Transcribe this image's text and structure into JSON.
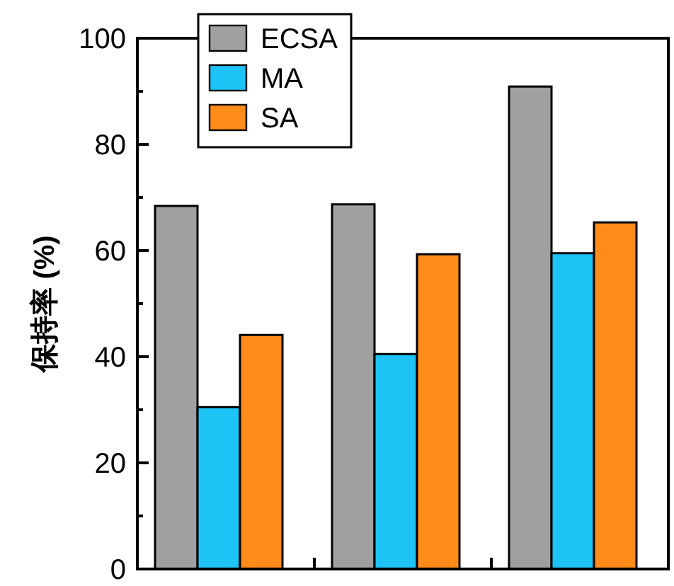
{
  "chart_data": {
    "type": "bar",
    "ylabel": "保持率 (%)",
    "categories": [
      null,
      null,
      null
    ],
    "series": [
      {
        "name": "ECSA",
        "color": "#a0a0a0",
        "values": [
          68.4,
          68.7,
          90.9
        ]
      },
      {
        "name": "MA",
        "color": "#1ec3f5",
        "values": [
          30.5,
          40.5,
          59.5
        ]
      },
      {
        "name": "SA",
        "color": "#ff8c1a",
        "values": [
          44.1,
          59.3,
          65.3
        ]
      }
    ],
    "ylim": [
      0,
      100
    ],
    "yticks": [
      0,
      {
        "value": 10,
        "label": null
      },
      20,
      {
        "value": 30,
        "label": null
      },
      40,
      {
        "value": 50,
        "label": null
      },
      60,
      {
        "value": 70,
        "label": null
      },
      80,
      {
        "value": 90,
        "label": null
      },
      100
    ],
    "legend": "top left",
    "grid": false
  }
}
